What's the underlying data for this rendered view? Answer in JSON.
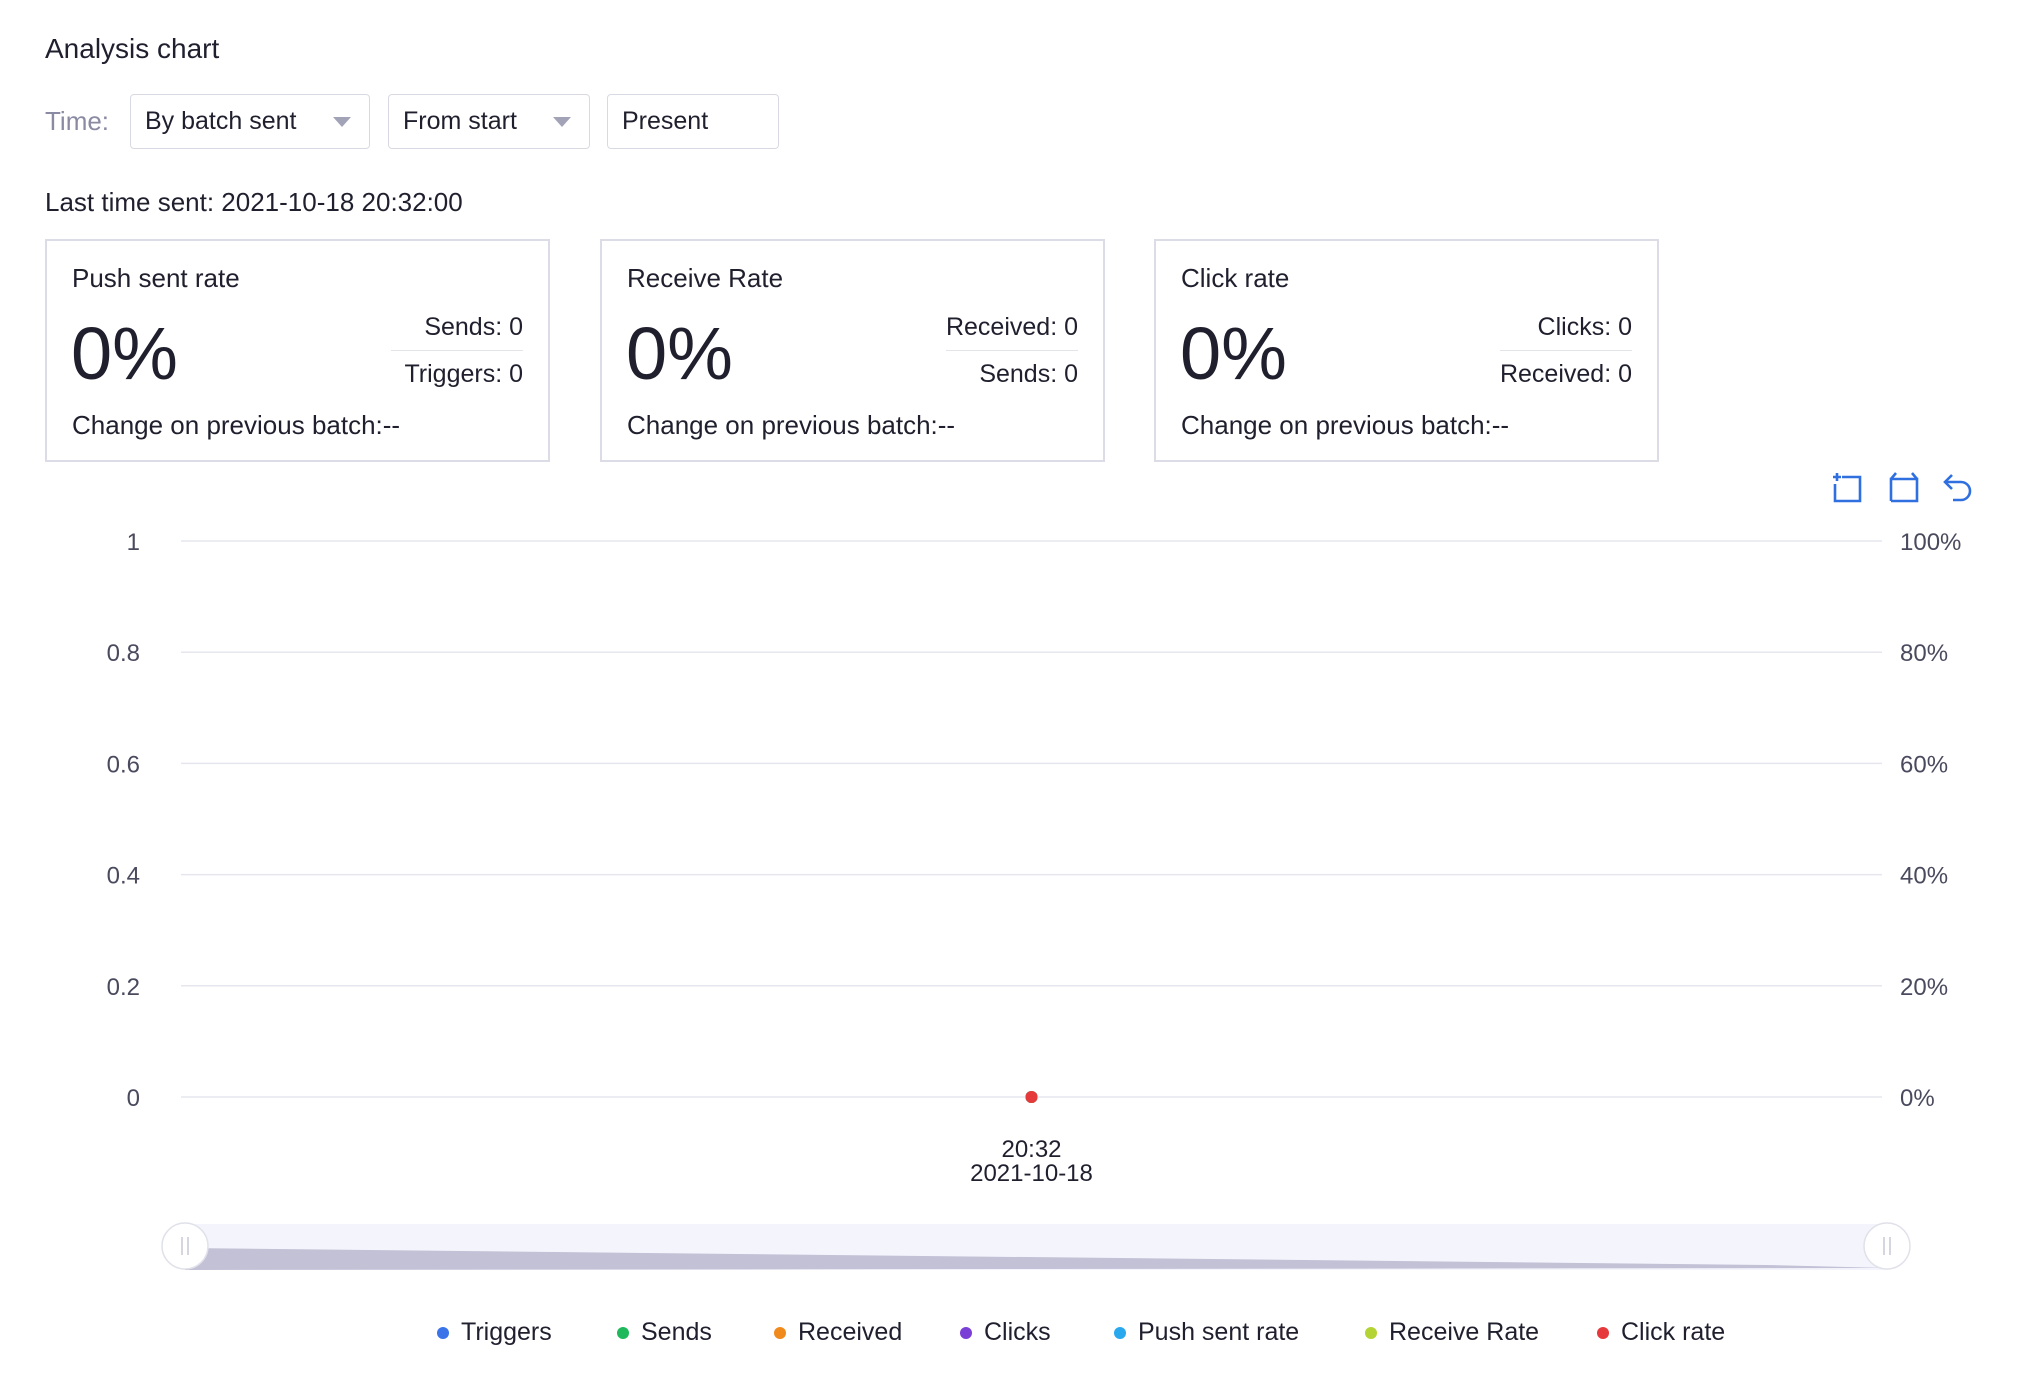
{
  "page": {
    "title": "Analysis chart",
    "time_label": "Time:",
    "filters": {
      "mode": "By batch sent",
      "from": "From start",
      "to": "Present"
    },
    "last_sent": "Last time sent: 2021-10-18 20:32:00"
  },
  "cards": [
    {
      "title": "Push sent rate",
      "value": "0%",
      "row1": "Sends: 0",
      "row2": "Triggers: 0",
      "change": "Change on previous batch:--"
    },
    {
      "title": "Receive Rate",
      "value": "0%",
      "row1": "Received: 0",
      "row2": "Sends: 0",
      "change": "Change on previous batch:--"
    },
    {
      "title": "Click rate",
      "value": "0%",
      "row1": "Clicks: 0",
      "row2": "Received: 0",
      "change": "Change on previous batch:--"
    }
  ],
  "toolbox": {
    "icons": [
      "zoom-select-icon",
      "zoom-reset-icon",
      "undo-icon"
    ],
    "accent": "#2f6fe0"
  },
  "chart_data": {
    "type": "line",
    "x": [
      "20:32\n2021-10-18"
    ],
    "x_tick_time": "20:32",
    "x_tick_date": "2021-10-18",
    "y_left_ticks": [
      "1",
      "0.8",
      "0.6",
      "0.4",
      "0.2",
      "0"
    ],
    "y_right_ticks": [
      "100%",
      "80%",
      "60%",
      "40%",
      "20%",
      "0%"
    ],
    "ylim_left": [
      0,
      1
    ],
    "ylim_right": [
      0,
      1
    ],
    "grid": true,
    "legend_position": "bottom",
    "series": [
      {
        "name": "Triggers",
        "color": "#3a74e8",
        "axis": "left",
        "values": [
          0
        ]
      },
      {
        "name": "Sends",
        "color": "#1fb85a",
        "axis": "left",
        "values": [
          0
        ]
      },
      {
        "name": "Received",
        "color": "#f08a1c",
        "axis": "left",
        "values": [
          0
        ]
      },
      {
        "name": "Clicks",
        "color": "#7a3fd6",
        "axis": "left",
        "values": [
          0
        ]
      },
      {
        "name": "Push sent rate",
        "color": "#2aa8ee",
        "axis": "right",
        "values": [
          0
        ]
      },
      {
        "name": "Receive Rate",
        "color": "#b4d334",
        "axis": "right",
        "values": [
          0
        ]
      },
      {
        "name": "Click rate",
        "color": "#e6393c",
        "axis": "right",
        "values": [
          0
        ]
      }
    ],
    "data_zoom": {
      "start": 0,
      "end": 100
    }
  }
}
